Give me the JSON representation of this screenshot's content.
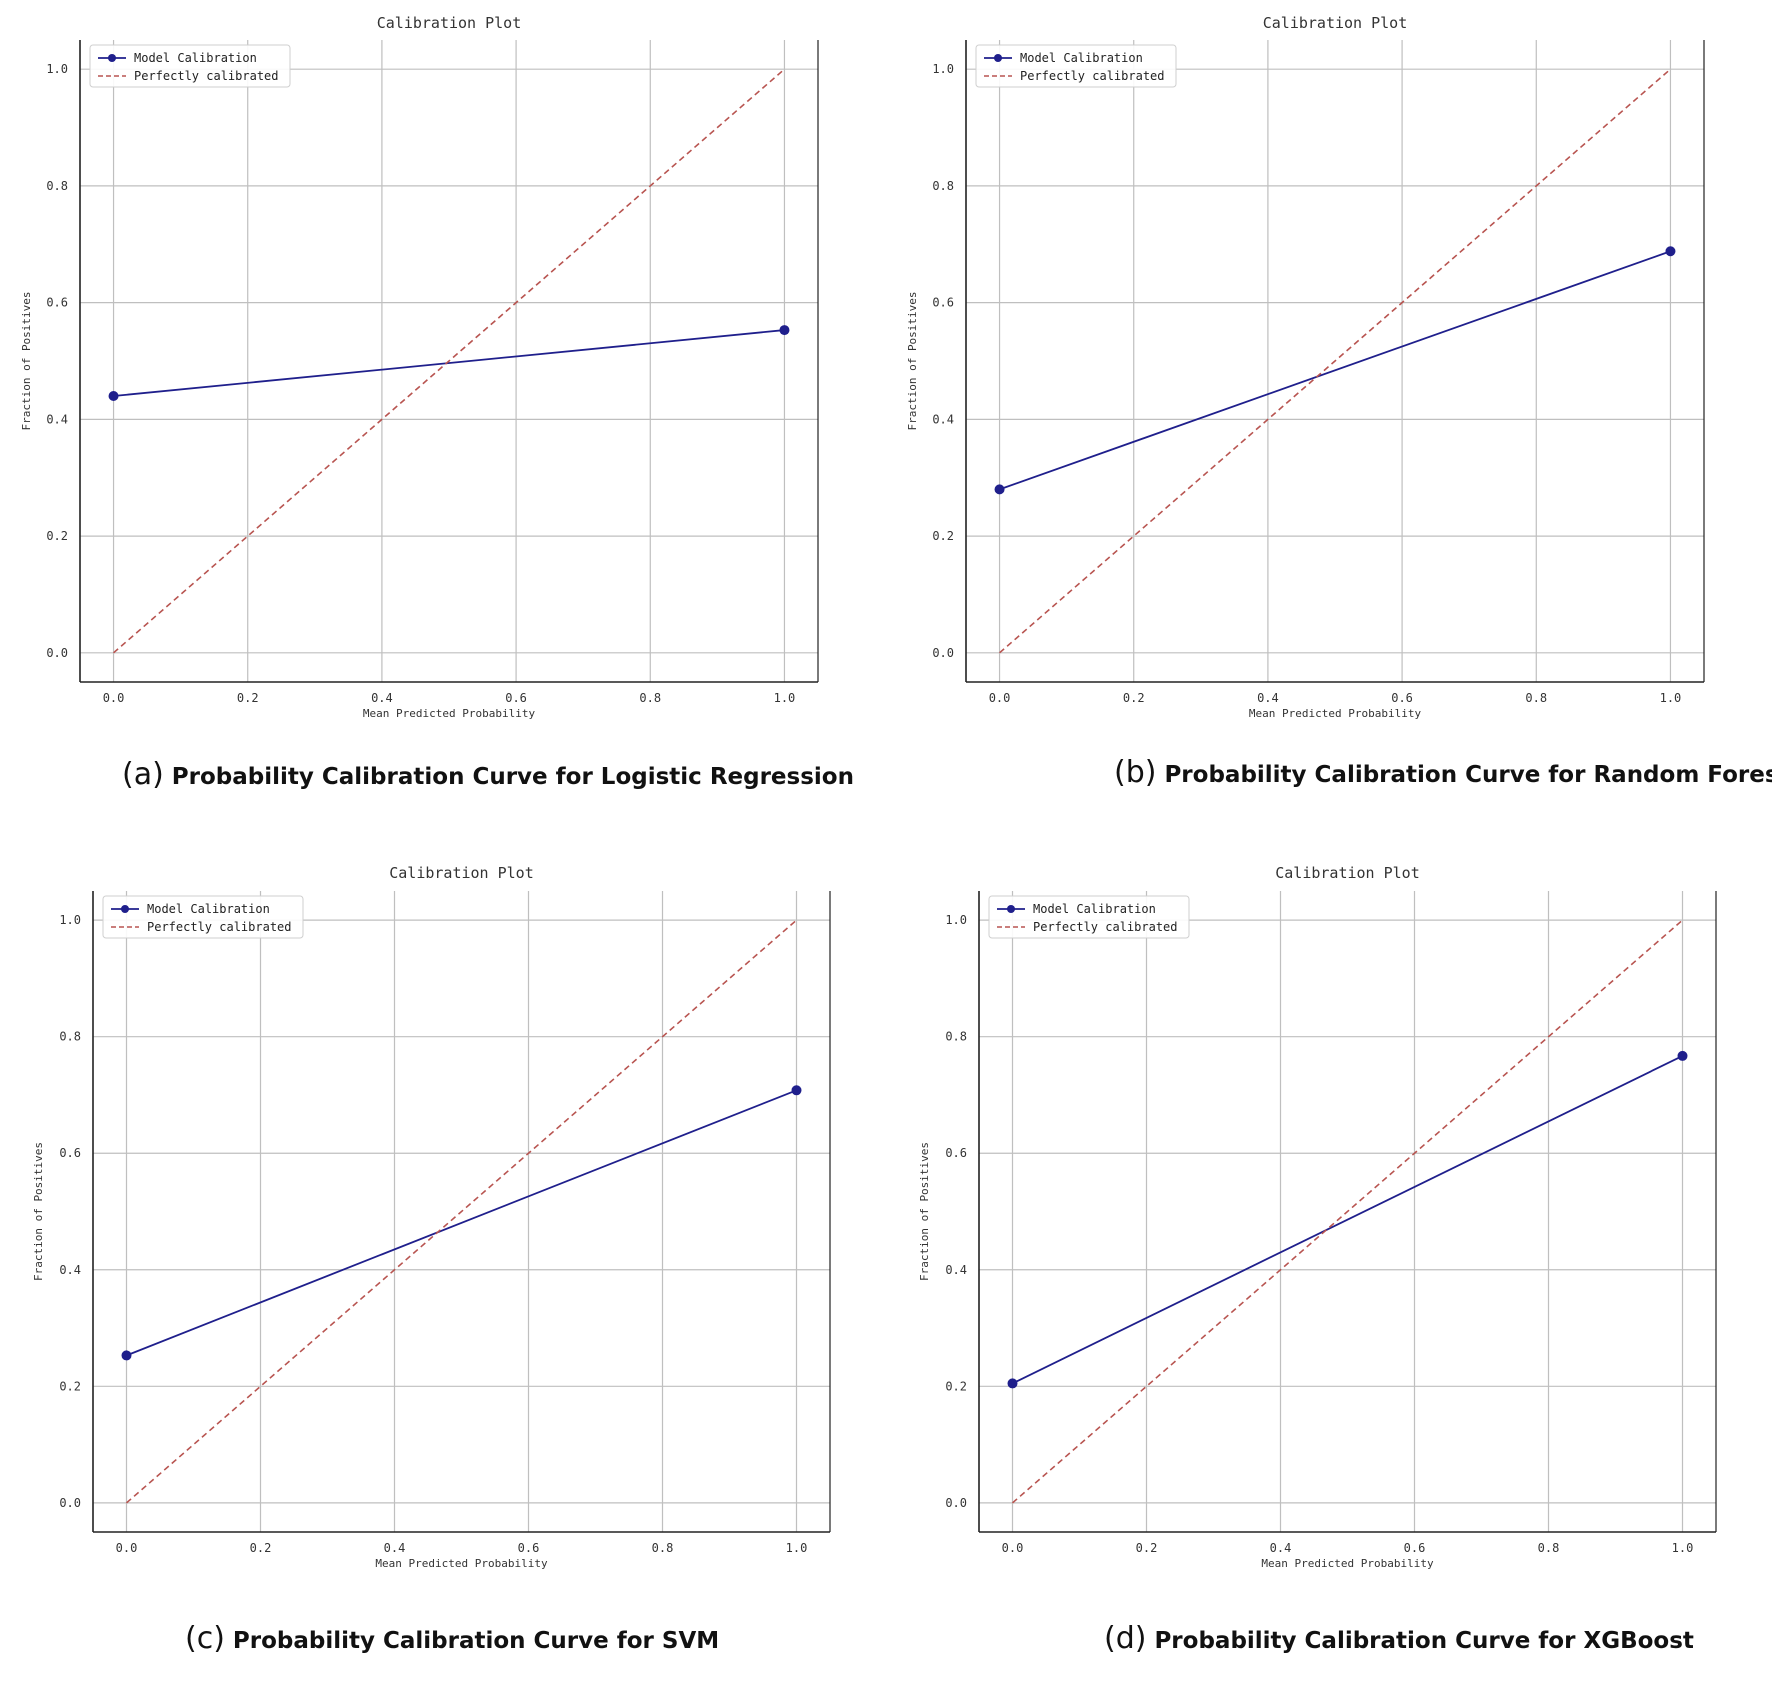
{
  "colors": {
    "model_line": "#1f1f8c",
    "perfect_line": "#b85450",
    "grid": "#bfbfbf",
    "axis": "#222222"
  },
  "chart_data": [
    {
      "type": "line",
      "panel_letter": "(a)",
      "caption": "Probability Calibration Curve for Logistic Regression",
      "title": "Calibration Plot",
      "xlabel": "Mean Predicted Probability",
      "ylabel": "Fraction of Positives",
      "xlim": [
        -0.05,
        1.05
      ],
      "ylim": [
        -0.05,
        1.05
      ],
      "xticks": [
        0.0,
        0.2,
        0.4,
        0.6,
        0.8,
        1.0
      ],
      "yticks": [
        0.0,
        0.2,
        0.4,
        0.6,
        0.8,
        1.0
      ],
      "grid": true,
      "legend": "top-left",
      "series": [
        {
          "name": "Model Calibration",
          "x": [
            0.0,
            1.0
          ],
          "y": [
            0.44,
            0.553
          ],
          "style": "solid-marker"
        },
        {
          "name": "Perfectly calibrated",
          "x": [
            0.0,
            1.0
          ],
          "y": [
            0.0,
            1.0
          ],
          "style": "dashed"
        }
      ]
    },
    {
      "type": "line",
      "panel_letter": "(b)",
      "caption": "Probability Calibration Curve for Random Forest",
      "title": "Calibration Plot",
      "xlabel": "Mean Predicted Probability",
      "ylabel": "Fraction of Positives",
      "xlim": [
        -0.05,
        1.05
      ],
      "ylim": [
        -0.05,
        1.05
      ],
      "xticks": [
        0.0,
        0.2,
        0.4,
        0.6,
        0.8,
        1.0
      ],
      "yticks": [
        0.0,
        0.2,
        0.4,
        0.6,
        0.8,
        1.0
      ],
      "grid": true,
      "legend": "top-left",
      "series": [
        {
          "name": "Model Calibration",
          "x": [
            0.0,
            1.0
          ],
          "y": [
            0.28,
            0.688
          ],
          "style": "solid-marker"
        },
        {
          "name": "Perfectly calibrated",
          "x": [
            0.0,
            1.0
          ],
          "y": [
            0.0,
            1.0
          ],
          "style": "dashed"
        }
      ]
    },
    {
      "type": "line",
      "panel_letter": "(c)",
      "caption": "Probability Calibration Curve for SVM",
      "title": "Calibration Plot",
      "xlabel": "Mean Predicted Probability",
      "ylabel": "Fraction of Positives",
      "xlim": [
        -0.05,
        1.05
      ],
      "ylim": [
        -0.05,
        1.05
      ],
      "xticks": [
        0.0,
        0.2,
        0.4,
        0.6,
        0.8,
        1.0
      ],
      "yticks": [
        0.0,
        0.2,
        0.4,
        0.6,
        0.8,
        1.0
      ],
      "grid": true,
      "legend": "top-left",
      "series": [
        {
          "name": "Model Calibration",
          "x": [
            0.0,
            1.0
          ],
          "y": [
            0.253,
            0.708
          ],
          "style": "solid-marker"
        },
        {
          "name": "Perfectly calibrated",
          "x": [
            0.0,
            1.0
          ],
          "y": [
            0.0,
            1.0
          ],
          "style": "dashed"
        }
      ]
    },
    {
      "type": "line",
      "panel_letter": "(d)",
      "caption": "Probability Calibration Curve for XGBoost",
      "title": "Calibration Plot",
      "xlabel": "Mean Predicted Probability",
      "ylabel": "Fraction of Positives",
      "xlim": [
        -0.05,
        1.05
      ],
      "ylim": [
        -0.05,
        1.05
      ],
      "xticks": [
        0.0,
        0.2,
        0.4,
        0.6,
        0.8,
        1.0
      ],
      "yticks": [
        0.0,
        0.2,
        0.4,
        0.6,
        0.8,
        1.0
      ],
      "grid": true,
      "legend": "top-left",
      "series": [
        {
          "name": "Model Calibration",
          "x": [
            0.0,
            1.0
          ],
          "y": [
            0.205,
            0.767
          ],
          "style": "solid-marker"
        },
        {
          "name": "Perfectly calibrated",
          "x": [
            0.0,
            1.0
          ],
          "y": [
            0.0,
            1.0
          ],
          "style": "dashed"
        }
      ]
    }
  ]
}
